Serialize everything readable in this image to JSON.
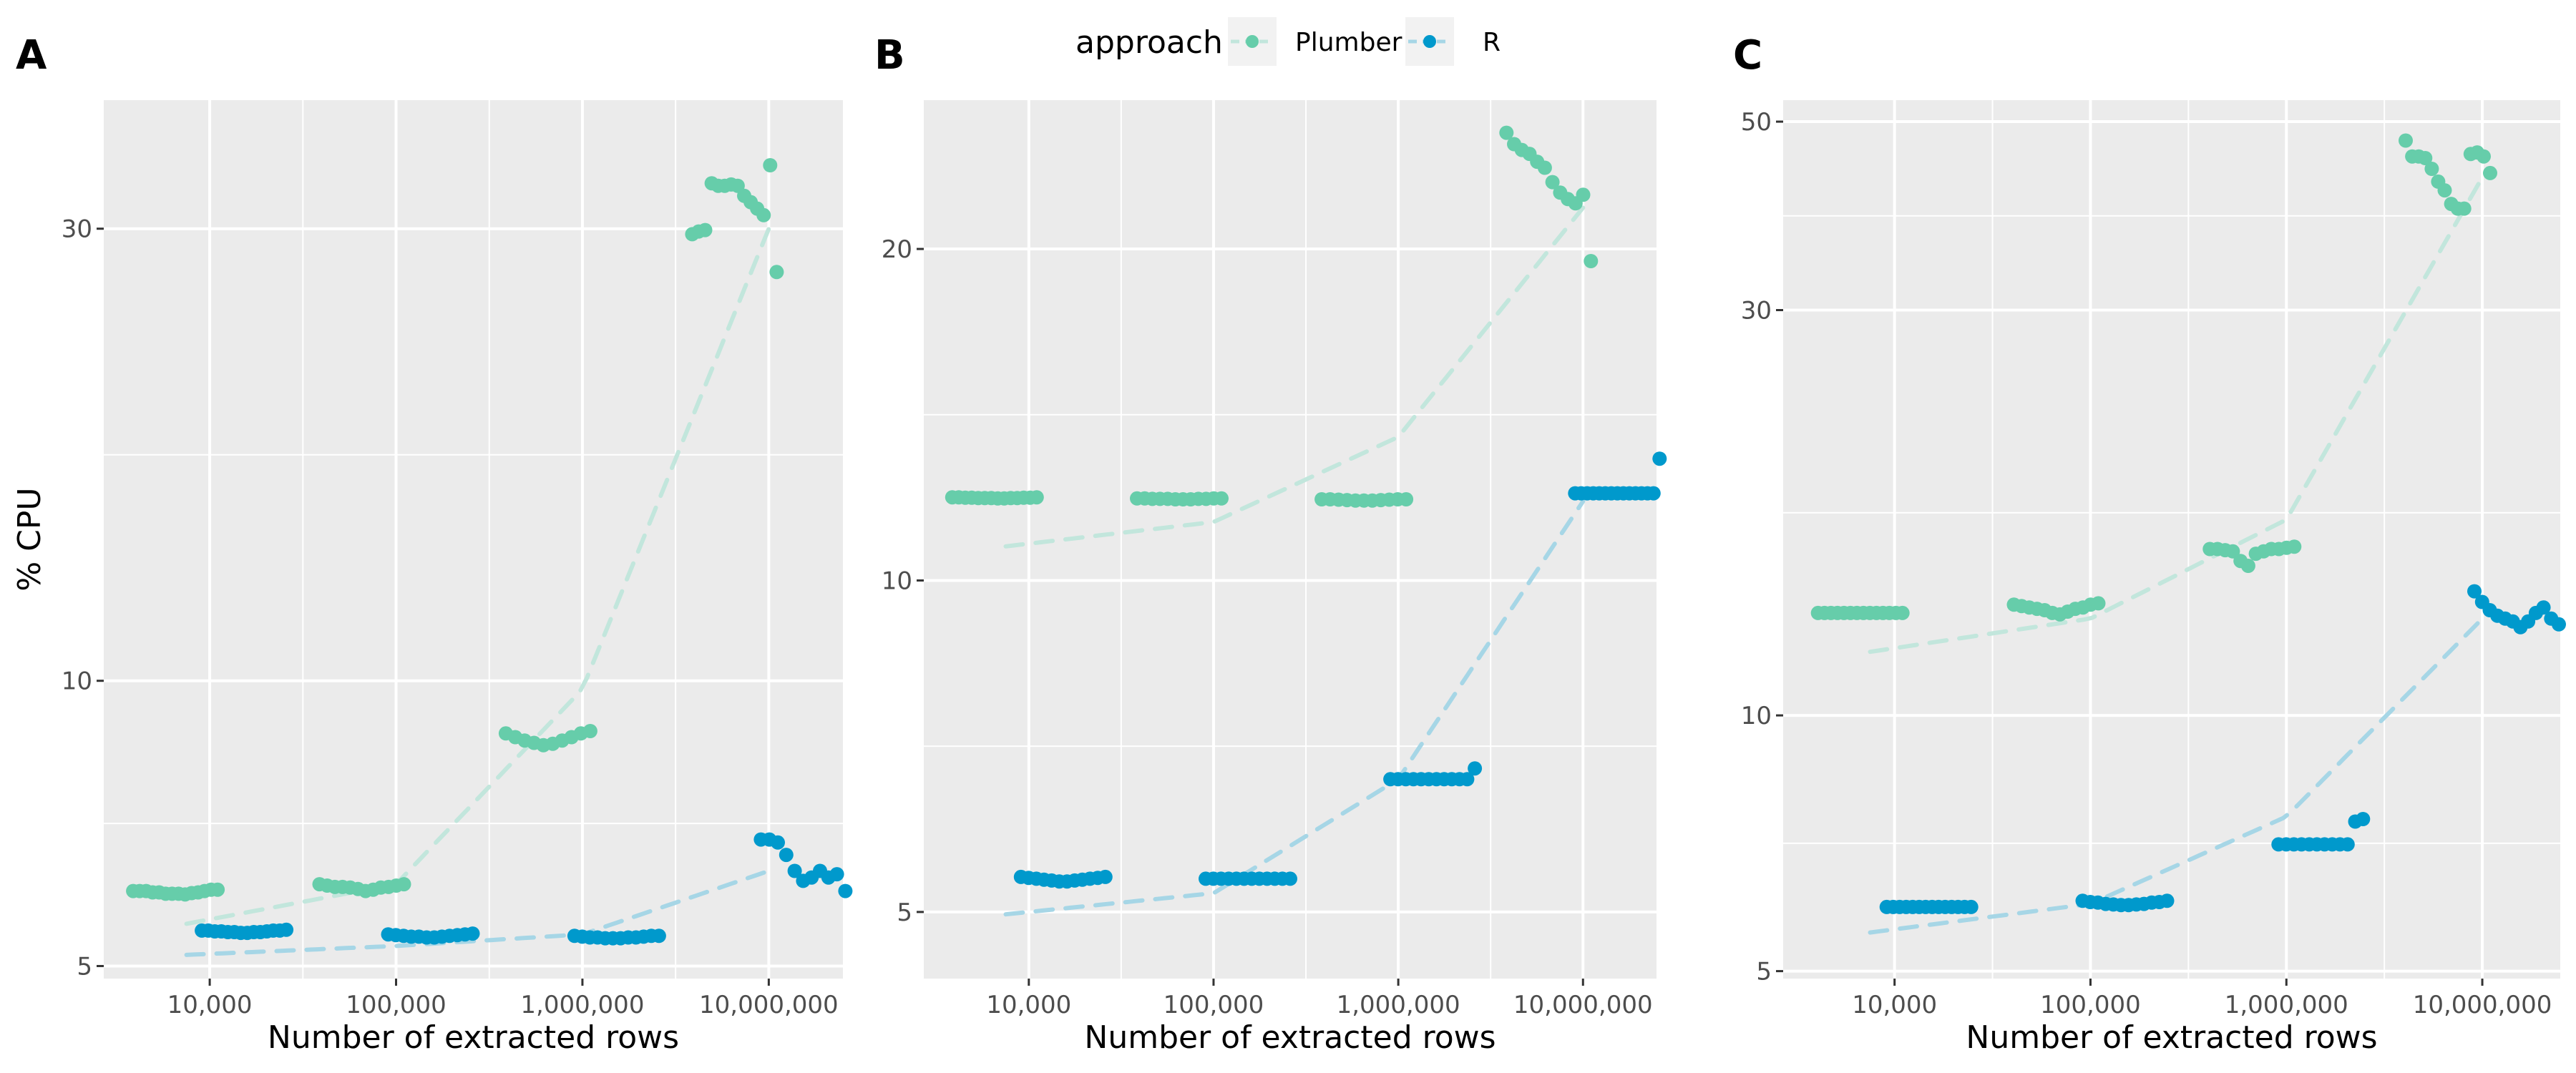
{
  "legend": {
    "title": "approach",
    "items": [
      {
        "label": "Plumber",
        "color": "#66cdaa"
      },
      {
        "label": "R",
        "color": "#0099cc"
      }
    ]
  },
  "colors": {
    "panel_bg": "#ebebeb",
    "grid": "#ffffff",
    "Plumber": "#66cdaa",
    "R": "#0099cc",
    "Plumber_trend": "#c2e6dc",
    "R_trend": "#a6d6e6"
  },
  "chart_data": [
    {
      "type": "scatter",
      "panel": "A",
      "xlabel": "Number of extracted rows",
      "ylabel": "% CPU",
      "x_scale": "log10",
      "y_scale": "log10",
      "xlim": [
        2700,
        25000000
      ],
      "ylim": [
        4.85,
        41
      ],
      "x_ticks": [
        10000,
        100000,
        1000000,
        10000000
      ],
      "x_tick_labels": [
        "10,000",
        "100,000",
        "1,000,000",
        "10,000,000"
      ],
      "y_ticks": [
        5,
        10,
        30
      ],
      "y_tick_labels": [
        "5",
        "10",
        "30"
      ],
      "series": [
        {
          "name": "Plumber",
          "trend": {
            "x": [
              10000,
              100000,
              1000000,
              10000000
            ],
            "y": [
              5.6,
              6.1,
              9.8,
              30
            ]
          },
          "clusters": [
            {
              "x": 10000,
              "values": [
                6.0,
                6.0,
                6.0,
                5.98,
                5.98,
                5.96,
                5.96,
                5.96,
                5.95,
                5.97,
                5.98,
                6.0,
                6.02,
                6.02
              ]
            },
            {
              "x": 100000,
              "values": [
                6.1,
                6.08,
                6.06,
                6.06,
                6.05,
                6.03,
                6.0,
                6.02,
                6.05,
                6.06,
                6.08,
                6.1
              ]
            },
            {
              "x": 1000000,
              "values": [
                8.8,
                8.72,
                8.65,
                8.6,
                8.55,
                8.58,
                8.65,
                8.72,
                8.8,
                8.85
              ]
            },
            {
              "x": 10000000,
              "values": [
                29.6,
                29.8,
                29.9,
                33.5,
                33.3,
                33.3,
                33.4,
                33.3,
                32.5,
                32.0,
                31.5,
                31.0,
                35.0,
                27.0
              ]
            }
          ]
        },
        {
          "name": "R",
          "trend": {
            "x": [
              10000,
              100000,
              1000000,
              10000000
            ],
            "y": [
              5.15,
              5.25,
              5.4,
              6.3
            ]
          },
          "clusters": [
            {
              "x": 10000,
              "values": [
                5.45,
                5.45,
                5.44,
                5.44,
                5.43,
                5.43,
                5.42,
                5.42,
                5.43,
                5.43,
                5.44,
                5.45,
                5.45,
                5.46
              ]
            },
            {
              "x": 100000,
              "values": [
                5.4,
                5.39,
                5.38,
                5.37,
                5.37,
                5.36,
                5.36,
                5.37,
                5.38,
                5.39,
                5.4,
                5.41
              ]
            },
            {
              "x": 1000000,
              "values": [
                5.38,
                5.37,
                5.36,
                5.36,
                5.35,
                5.35,
                5.35,
                5.36,
                5.36,
                5.37,
                5.38,
                5.38
              ]
            },
            {
              "x": 10000000,
              "values": [
                6.8,
                6.8,
                6.75,
                6.55,
                6.3,
                6.15,
                6.2,
                6.3,
                6.2,
                6.25,
                6.0
              ]
            }
          ]
        }
      ]
    },
    {
      "type": "scatter",
      "panel": "B",
      "xlabel": "Number of extracted rows",
      "ylabel": "",
      "x_scale": "log10",
      "y_scale": "log10",
      "xlim": [
        2700,
        25000000
      ],
      "ylim": [
        4.35,
        27.3
      ],
      "x_ticks": [
        10000,
        100000,
        1000000,
        10000000
      ],
      "x_tick_labels": [
        "10,000",
        "100,000",
        "1,000,000",
        "10,000,000"
      ],
      "y_ticks": [
        5,
        10,
        20
      ],
      "y_tick_labels": [
        "5",
        "10",
        "20"
      ],
      "series": [
        {
          "name": "Plumber",
          "trend": {
            "x": [
              10000,
              100000,
              1000000,
              10000000
            ],
            "y": [
              10.8,
              11.3,
              13.5,
              21.8
            ]
          },
          "clusters": [
            {
              "x": 10000,
              "values": [
                11.9,
                11.9,
                11.89,
                11.89,
                11.88,
                11.88,
                11.88,
                11.87,
                11.87,
                11.88,
                11.88,
                11.89,
                11.89,
                11.9
              ]
            },
            {
              "x": 100000,
              "values": [
                11.87,
                11.87,
                11.86,
                11.86,
                11.86,
                11.85,
                11.85,
                11.85,
                11.86,
                11.86,
                11.87,
                11.87
              ]
            },
            {
              "x": 1000000,
              "values": [
                11.85,
                11.85,
                11.84,
                11.83,
                11.82,
                11.82,
                11.82,
                11.83,
                11.84,
                11.85,
                11.85
              ]
            },
            {
              "x": 10000000,
              "values": [
                25.5,
                24.9,
                24.6,
                24.4,
                24.0,
                23.7,
                23.0,
                22.5,
                22.2,
                22.0,
                22.4,
                19.5
              ]
            }
          ]
        },
        {
          "name": "R",
          "trend": {
            "x": [
              10000,
              100000,
              1000000,
              10000000
            ],
            "y": [
              5.0,
              5.2,
              6.6,
              11.8
            ]
          },
          "clusters": [
            {
              "x": 10000,
              "values": [
                5.38,
                5.37,
                5.36,
                5.35,
                5.34,
                5.33,
                5.33,
                5.34,
                5.35,
                5.36,
                5.37,
                5.38
              ]
            },
            {
              "x": 100000,
              "values": [
                5.36,
                5.36,
                5.36,
                5.36,
                5.36,
                5.36,
                5.36,
                5.36,
                5.36,
                5.36,
                5.36,
                5.36
              ]
            },
            {
              "x": 1000000,
              "values": [
                6.6,
                6.6,
                6.6,
                6.6,
                6.6,
                6.6,
                6.6,
                6.6,
                6.6,
                6.6,
                6.6,
                6.75
              ]
            },
            {
              "x": 10000000,
              "values": [
                12.0,
                12.0,
                12.0,
                12.0,
                12.0,
                12.0,
                12.0,
                12.0,
                12.0,
                12.0,
                12.0,
                12.0,
                12.0,
                12.0,
                12.9
              ]
            }
          ]
        }
      ]
    },
    {
      "type": "scatter",
      "panel": "C",
      "xlabel": "Number of extracted rows",
      "ylabel": "",
      "x_scale": "log10",
      "y_scale": "log10",
      "xlim": [
        2700,
        25000000
      ],
      "ylim": [
        4.9,
        53
      ],
      "x_ticks": [
        10000,
        100000,
        1000000,
        10000000
      ],
      "x_tick_labels": [
        "10,000",
        "100,000",
        "1,000,000",
        "10,000,000"
      ],
      "y_ticks": [
        5,
        10,
        30,
        50
      ],
      "y_tick_labels": [
        "5",
        "10",
        "30",
        "50"
      ],
      "series": [
        {
          "name": "Plumber",
          "trend": {
            "x": [
              10000,
              100000,
              1000000,
              10000000
            ],
            "y": [
              12.0,
              13.0,
              17.0,
              43.0
            ]
          },
          "clusters": [
            {
              "x": 10000,
              "values": [
                13.2,
                13.2,
                13.2,
                13.2,
                13.2,
                13.2,
                13.2,
                13.2,
                13.2,
                13.2,
                13.2,
                13.2,
                13.2,
                13.2
              ]
            },
            {
              "x": 100000,
              "values": [
                13.5,
                13.45,
                13.4,
                13.35,
                13.3,
                13.2,
                13.15,
                13.25,
                13.35,
                13.4,
                13.5,
                13.55
              ]
            },
            {
              "x": 1000000,
              "values": [
                15.7,
                15.7,
                15.65,
                15.6,
                15.2,
                15.0,
                15.5,
                15.6,
                15.7,
                15.7,
                15.75,
                15.8
              ]
            },
            {
              "x": 10000000,
              "values": [
                47.5,
                45.5,
                45.5,
                45.3,
                44.0,
                42.5,
                41.5,
                40.0,
                39.5,
                39.5,
                45.8,
                46.0,
                45.5,
                43.5
              ]
            }
          ]
        },
        {
          "name": "R",
          "trend": {
            "x": [
              10000,
              100000,
              1000000,
              10000000
            ],
            "y": [
              5.6,
              6.0,
              7.6,
              13.0
            ]
          },
          "clusters": [
            {
              "x": 10000,
              "values": [
                5.95,
                5.95,
                5.95,
                5.95,
                5.95,
                5.95,
                5.95,
                5.95,
                5.95,
                5.95,
                5.95,
                5.95,
                5.95,
                5.95
              ]
            },
            {
              "x": 100000,
              "values": [
                6.05,
                6.03,
                6.02,
                6.0,
                5.99,
                5.98,
                5.98,
                5.99,
                6.0,
                6.02,
                6.03,
                6.05
              ]
            },
            {
              "x": 1000000,
              "values": [
                7.05,
                7.05,
                7.05,
                7.05,
                7.05,
                7.05,
                7.05,
                7.05,
                7.05,
                7.05,
                7.5,
                7.55
              ]
            },
            {
              "x": 10000000,
              "values": [
                14.0,
                13.6,
                13.3,
                13.1,
                13.0,
                12.9,
                12.7,
                12.9,
                13.2,
                13.4,
                13.0,
                12.8
              ]
            }
          ]
        }
      ]
    }
  ]
}
